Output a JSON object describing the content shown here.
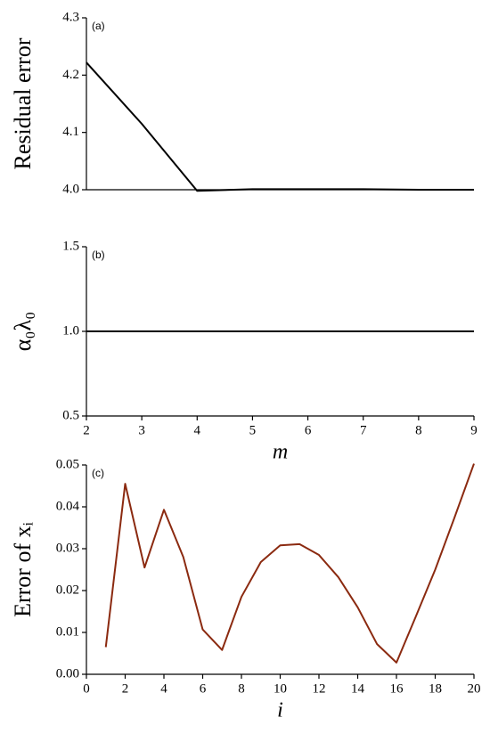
{
  "chart_data": [
    {
      "type": "line",
      "panel_label": "(a)",
      "ylabel": "Residual error",
      "x": [
        2,
        3,
        4,
        5,
        6,
        7,
        8,
        9
      ],
      "series": [
        {
          "color": "#000000",
          "values": [
            4.222,
            4.115,
            3.998,
            4.001,
            4.001,
            4.001,
            4.0,
            4.0
          ]
        }
      ],
      "xlim": [
        2,
        9
      ],
      "ylim": [
        4.0,
        4.3
      ],
      "yticks": [
        {
          "value": 4.0,
          "label": "4.0"
        },
        4.1,
        4.2,
        4.3
      ]
    },
    {
      "type": "line",
      "panel_label": "(b)",
      "ylabel": "α₀λ₀",
      "xlabel": "m",
      "x": [
        2,
        3,
        4,
        5,
        6,
        7,
        8,
        9
      ],
      "series": [
        {
          "color": "#000000",
          "values": [
            1.0,
            1.0,
            1.0,
            1.0,
            1.0,
            1.0,
            1.0,
            1.0
          ]
        }
      ],
      "xlim": [
        2,
        9
      ],
      "xticks": [
        2,
        3,
        4,
        5,
        6,
        7,
        8,
        9
      ],
      "ylim": [
        0.5,
        1.5
      ],
      "yticks": [
        0.5,
        {
          "value": 1.0,
          "label": "1.0"
        },
        1.5
      ]
    },
    {
      "type": "line",
      "panel_label": "(c)",
      "ylabel": "Error of xᵢ",
      "xlabel": "i",
      "x": [
        1,
        2,
        3,
        4,
        5,
        6,
        7,
        8,
        9,
        10,
        11,
        12,
        13,
        14,
        15,
        16,
        17,
        18,
        19,
        20
      ],
      "series": [
        {
          "color": "#8b2a10",
          "values": [
            0.0065,
            0.0455,
            0.0255,
            0.0393,
            0.028,
            0.0107,
            0.0058,
            0.0185,
            0.0268,
            0.0308,
            0.0311,
            0.0285,
            0.0232,
            0.016,
            0.0072,
            0.0028,
            0.0138,
            0.025,
            0.0375,
            0.0503
          ]
        }
      ],
      "xlim": [
        0,
        20
      ],
      "xticks": [
        0,
        2,
        4,
        6,
        8,
        10,
        12,
        14,
        16,
        18,
        20
      ],
      "ylim": [
        0,
        0.05
      ],
      "yticks": [
        {
          "value": 0,
          "label": "0.00"
        },
        0.01,
        0.02,
        0.03,
        0.04,
        0.05
      ]
    }
  ]
}
